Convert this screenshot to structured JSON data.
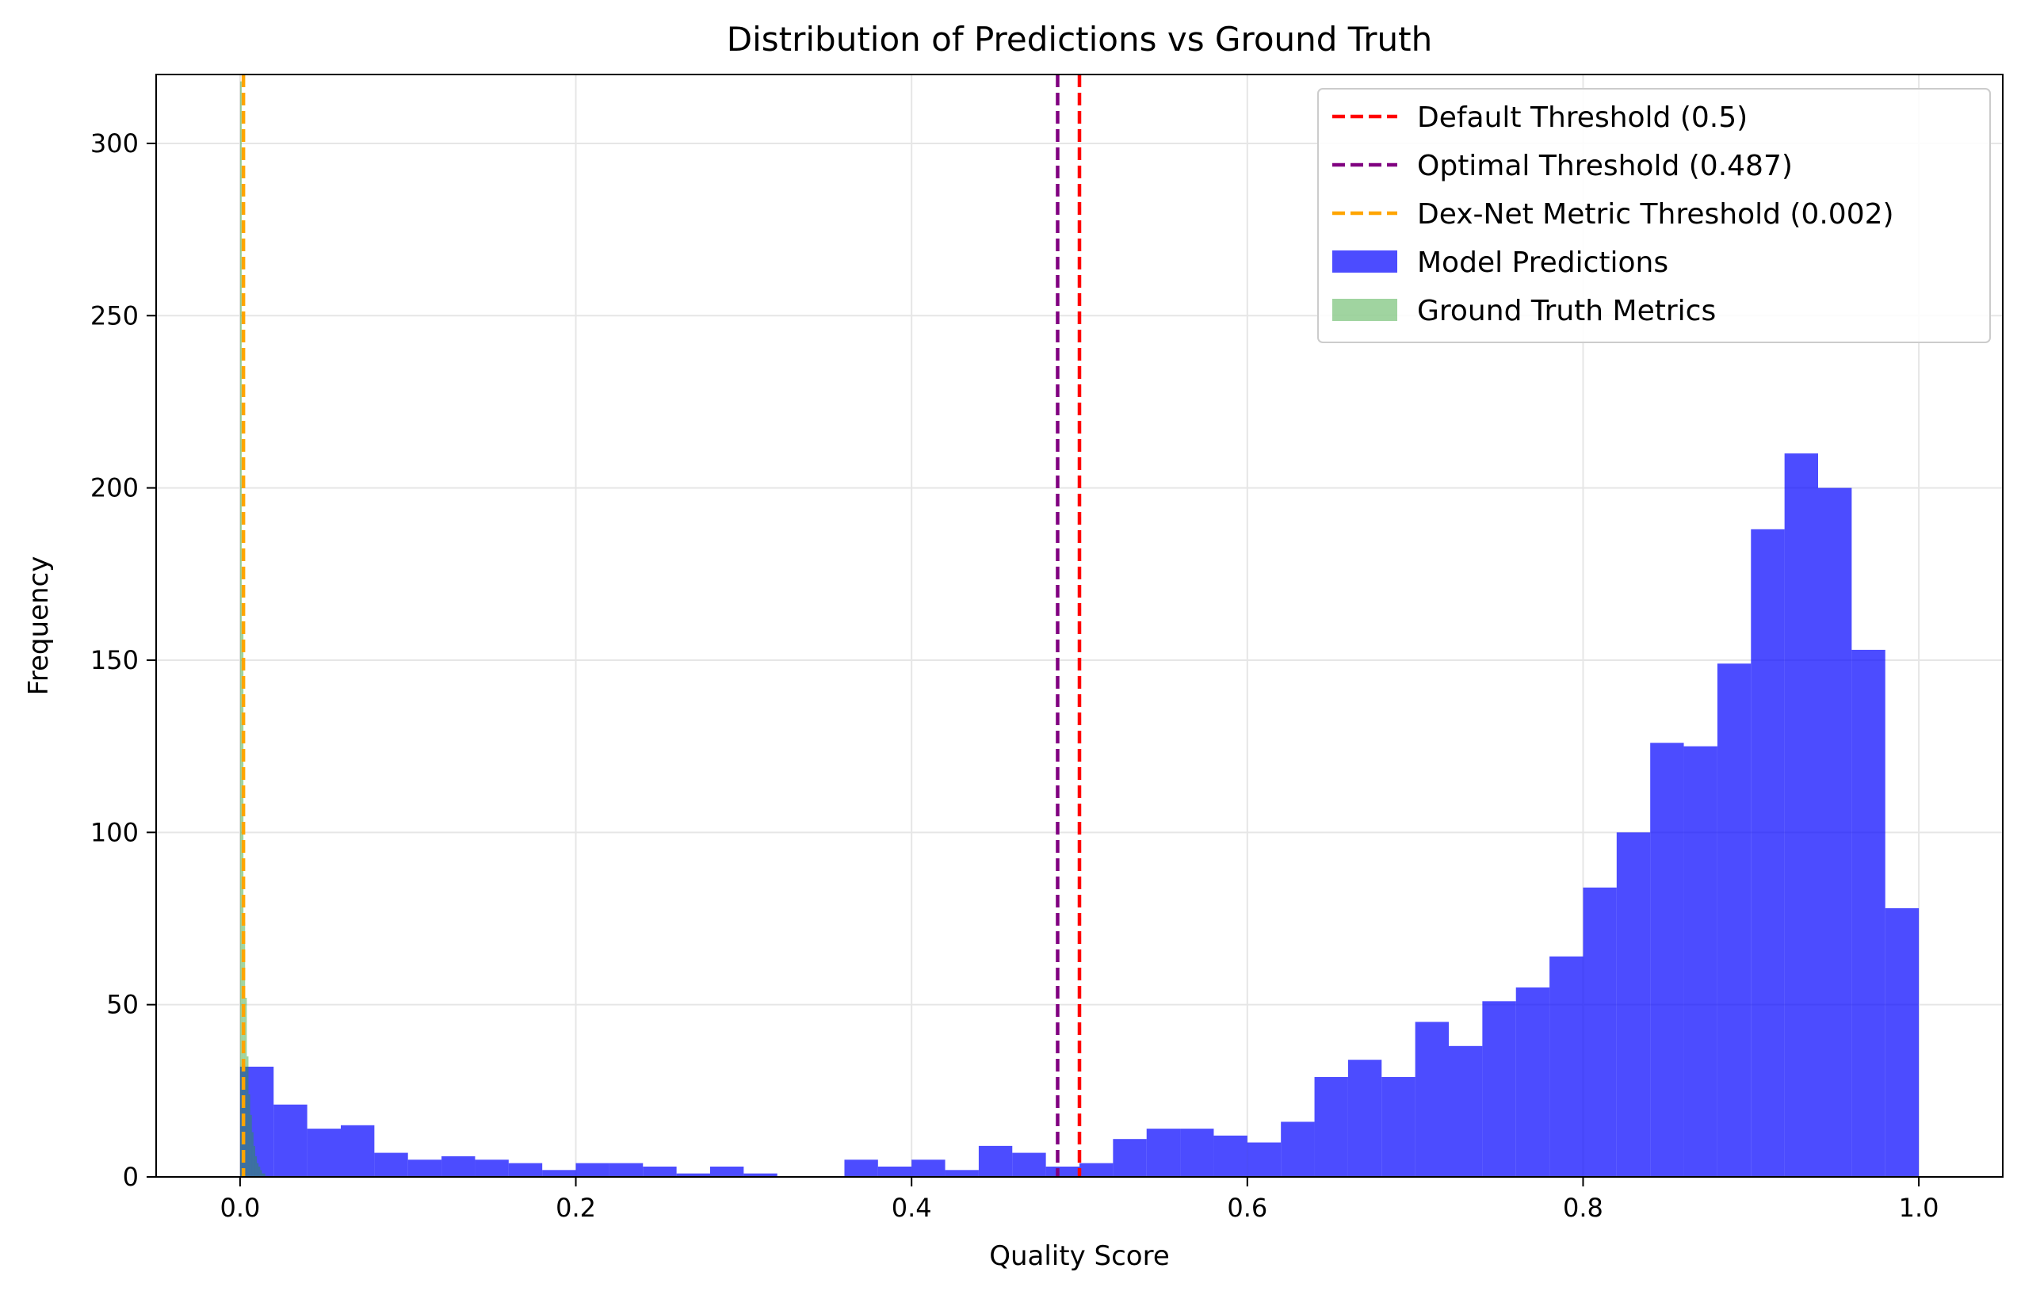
{
  "chart_data": {
    "type": "bar",
    "title": "Distribution of Predictions vs Ground Truth",
    "xlabel": "Quality Score",
    "ylabel": "Frequency",
    "xlim": [
      -0.05,
      1.05
    ],
    "ylim": [
      0,
      320
    ],
    "xticks": [
      0.0,
      0.2,
      0.4,
      0.6,
      0.8,
      1.0
    ],
    "xtick_labels": [
      "0.0",
      "0.2",
      "0.4",
      "0.6",
      "0.8",
      "1.0"
    ],
    "yticks": [
      0,
      50,
      100,
      150,
      200,
      250,
      300
    ],
    "ytick_labels": [
      "0",
      "50",
      "100",
      "150",
      "200",
      "250",
      "300"
    ],
    "grid": true,
    "legend_position": "top-right",
    "threshold_lines": [
      {
        "name": "Default Threshold (0.5)",
        "x": 0.5,
        "color": "#ff0000",
        "style": "dashed"
      },
      {
        "name": "Optimal Threshold (0.487)",
        "x": 0.487,
        "color": "#800080",
        "style": "dashed"
      },
      {
        "name": "Dex-Net Metric Threshold (0.002)",
        "x": 0.002,
        "color": "#ffa500",
        "style": "dashed"
      }
    ],
    "series": [
      {
        "name": "Model Predictions",
        "color": "#0000ff",
        "opacity": 0.7,
        "bin_width": 0.02,
        "bin_starts": [
          0.0,
          0.02,
          0.04,
          0.06,
          0.08,
          0.1,
          0.12,
          0.14,
          0.16,
          0.18,
          0.2,
          0.22,
          0.24,
          0.26,
          0.28,
          0.3,
          0.32,
          0.34,
          0.36,
          0.38,
          0.4,
          0.42,
          0.44,
          0.46,
          0.48,
          0.5,
          0.52,
          0.54,
          0.56,
          0.58,
          0.6,
          0.62,
          0.64,
          0.66,
          0.68,
          0.7,
          0.72,
          0.74,
          0.76,
          0.78,
          0.8,
          0.82,
          0.84,
          0.86,
          0.88,
          0.9,
          0.92,
          0.94,
          0.96,
          0.98
        ],
        "values": [
          32,
          21,
          14,
          15,
          7,
          5,
          6,
          5,
          4,
          2,
          4,
          4,
          3,
          1,
          3,
          1,
          0,
          0,
          5,
          3,
          5,
          2,
          9,
          7,
          3,
          4,
          11,
          14,
          14,
          12,
          10,
          16,
          29,
          34,
          29,
          45,
          38,
          51,
          55,
          64,
          84,
          100,
          126,
          125,
          149,
          188,
          210,
          200,
          153,
          78
        ]
      },
      {
        "name": "Ground Truth Metrics",
        "color": "#2ca02c",
        "opacity": 0.45,
        "bin_width": 0.001,
        "bin_starts": [
          0.0,
          0.001,
          0.002,
          0.003,
          0.004,
          0.005,
          0.006,
          0.007,
          0.008,
          0.009,
          0.01,
          0.011,
          0.012,
          0.013,
          0.014
        ],
        "values": [
          318,
          160,
          74,
          52,
          35,
          24,
          18,
          13,
          9,
          6,
          4,
          3,
          2,
          1,
          1
        ]
      }
    ]
  }
}
